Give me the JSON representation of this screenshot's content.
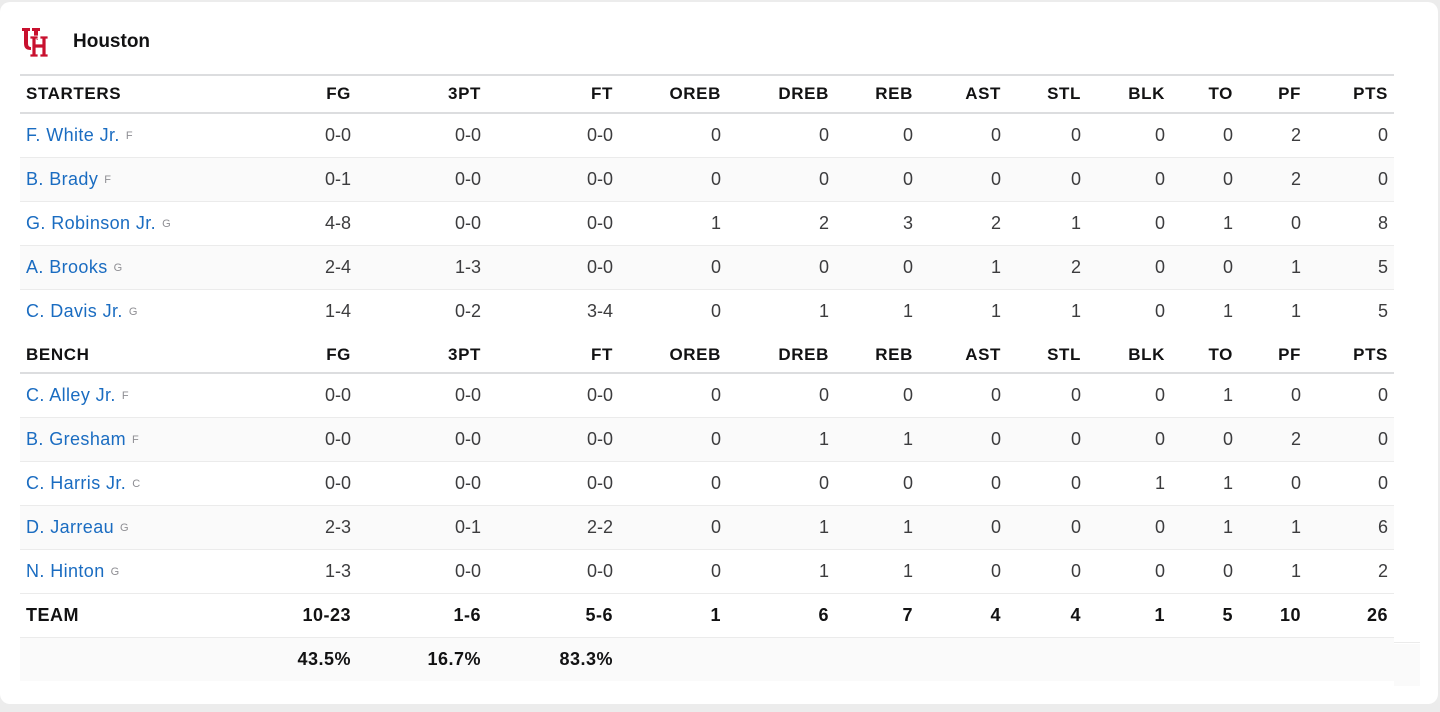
{
  "team": {
    "name": "Houston",
    "logo_icon": "uh-logo-icon",
    "logo_color": "#c8102e"
  },
  "columns": [
    "FG",
    "3PT",
    "FT",
    "OREB",
    "DREB",
    "REB",
    "AST",
    "STL",
    "BLK",
    "TO",
    "PF",
    "PTS"
  ],
  "starters": {
    "label": "STARTERS",
    "players": [
      {
        "name": "F. White Jr.",
        "pos": "F",
        "stats": [
          "0-0",
          "0-0",
          "0-0",
          "0",
          "0",
          "0",
          "0",
          "0",
          "0",
          "0",
          "2",
          "0"
        ]
      },
      {
        "name": "B. Brady",
        "pos": "F",
        "stats": [
          "0-1",
          "0-0",
          "0-0",
          "0",
          "0",
          "0",
          "0",
          "0",
          "0",
          "0",
          "2",
          "0"
        ]
      },
      {
        "name": "G. Robinson Jr.",
        "pos": "G",
        "stats": [
          "4-8",
          "0-0",
          "0-0",
          "1",
          "2",
          "3",
          "2",
          "1",
          "0",
          "1",
          "0",
          "8"
        ]
      },
      {
        "name": "A. Brooks",
        "pos": "G",
        "stats": [
          "2-4",
          "1-3",
          "0-0",
          "0",
          "0",
          "0",
          "1",
          "2",
          "0",
          "0",
          "1",
          "5"
        ]
      },
      {
        "name": "C. Davis Jr.",
        "pos": "G",
        "stats": [
          "1-4",
          "0-2",
          "3-4",
          "0",
          "1",
          "1",
          "1",
          "1",
          "0",
          "1",
          "1",
          "5"
        ]
      }
    ]
  },
  "bench": {
    "label": "BENCH",
    "players": [
      {
        "name": "C. Alley Jr.",
        "pos": "F",
        "stats": [
          "0-0",
          "0-0",
          "0-0",
          "0",
          "0",
          "0",
          "0",
          "0",
          "0",
          "1",
          "0",
          "0"
        ]
      },
      {
        "name": "B. Gresham",
        "pos": "F",
        "stats": [
          "0-0",
          "0-0",
          "0-0",
          "0",
          "1",
          "1",
          "0",
          "0",
          "0",
          "0",
          "2",
          "0"
        ]
      },
      {
        "name": "C. Harris Jr.",
        "pos": "C",
        "stats": [
          "0-0",
          "0-0",
          "0-0",
          "0",
          "0",
          "0",
          "0",
          "0",
          "1",
          "1",
          "0",
          "0"
        ]
      },
      {
        "name": "D. Jarreau",
        "pos": "G",
        "stats": [
          "2-3",
          "0-1",
          "2-2",
          "0",
          "1",
          "1",
          "0",
          "0",
          "0",
          "1",
          "1",
          "6"
        ]
      },
      {
        "name": "N. Hinton",
        "pos": "G",
        "stats": [
          "1-3",
          "0-0",
          "0-0",
          "0",
          "1",
          "1",
          "0",
          "0",
          "0",
          "0",
          "1",
          "2"
        ]
      }
    ]
  },
  "totals": {
    "label": "TEAM",
    "stats": [
      "10-23",
      "1-6",
      "5-6",
      "1",
      "6",
      "7",
      "4",
      "4",
      "1",
      "5",
      "10",
      "26"
    ],
    "percentages": [
      "43.5%",
      "16.7%",
      "83.3%"
    ]
  }
}
